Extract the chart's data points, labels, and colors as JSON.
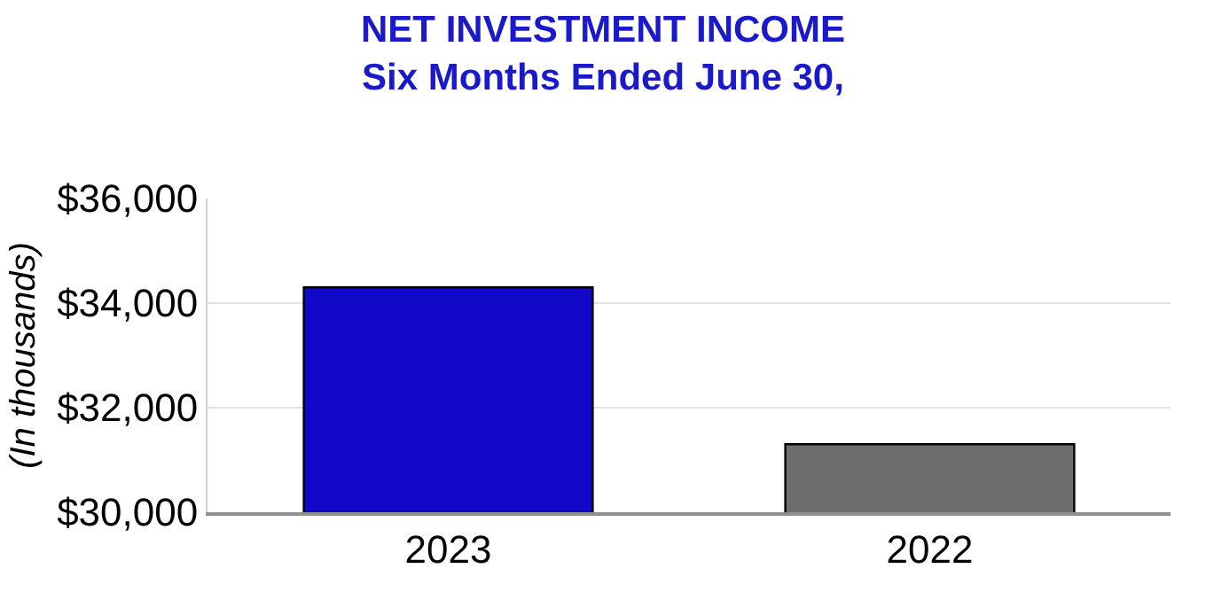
{
  "chart_data": {
    "type": "bar",
    "title": "NET INVESTMENT INCOME",
    "subtitle": "Six Months Ended June 30,",
    "ylabel": "(In thousands)",
    "categories": [
      "2023",
      "2022"
    ],
    "values": [
      34300,
      31300
    ],
    "colors": [
      "#1208c8",
      "#6e6e6e"
    ],
    "ylim": [
      30000,
      36000
    ],
    "yticks": [
      {
        "value": 30000,
        "label": "$30,000"
      },
      {
        "value": 32000,
        "label": "$32,000"
      },
      {
        "value": 34000,
        "label": "$34,000"
      },
      {
        "value": 36000,
        "label": "$36,000"
      }
    ],
    "grid": "y",
    "legend": false
  }
}
